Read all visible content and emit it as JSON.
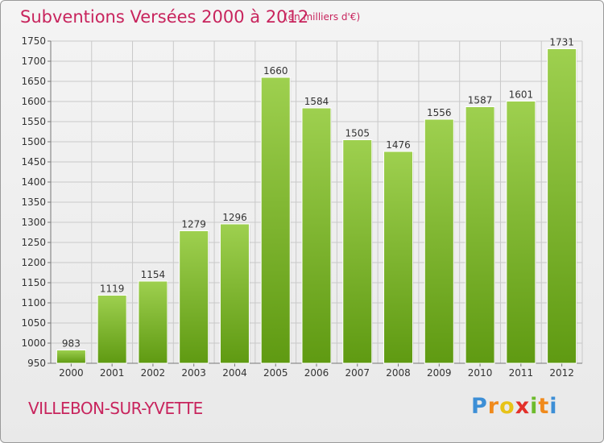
{
  "title": "Subventions Versées 2000 à 2012",
  "subtitle": "(en milliers d'€)",
  "footer": {
    "place": "VILLEBON-SUR-YVETTE"
  },
  "brand": {
    "letters": [
      "P",
      "r",
      "o",
      "x",
      "i",
      "t",
      "i"
    ]
  },
  "colors": {
    "title": "#c8245d",
    "bar_top": "#9ed04f",
    "bar_bottom": "#5f9a12",
    "grid": "#c9c9c9"
  },
  "chart_data": {
    "type": "bar",
    "categories": [
      "2000",
      "2001",
      "2002",
      "2003",
      "2004",
      "2005",
      "2006",
      "2007",
      "2008",
      "2009",
      "2010",
      "2011",
      "2012"
    ],
    "values": [
      983,
      1119,
      1154,
      1279,
      1296,
      1660,
      1584,
      1505,
      1476,
      1556,
      1587,
      1601,
      1731
    ],
    "ylim": [
      950,
      1750
    ],
    "yticks": [
      950,
      1000,
      1050,
      1100,
      1150,
      1200,
      1250,
      1300,
      1350,
      1400,
      1450,
      1500,
      1550,
      1600,
      1650,
      1700,
      1750
    ],
    "grid": true,
    "data_labels": true
  }
}
